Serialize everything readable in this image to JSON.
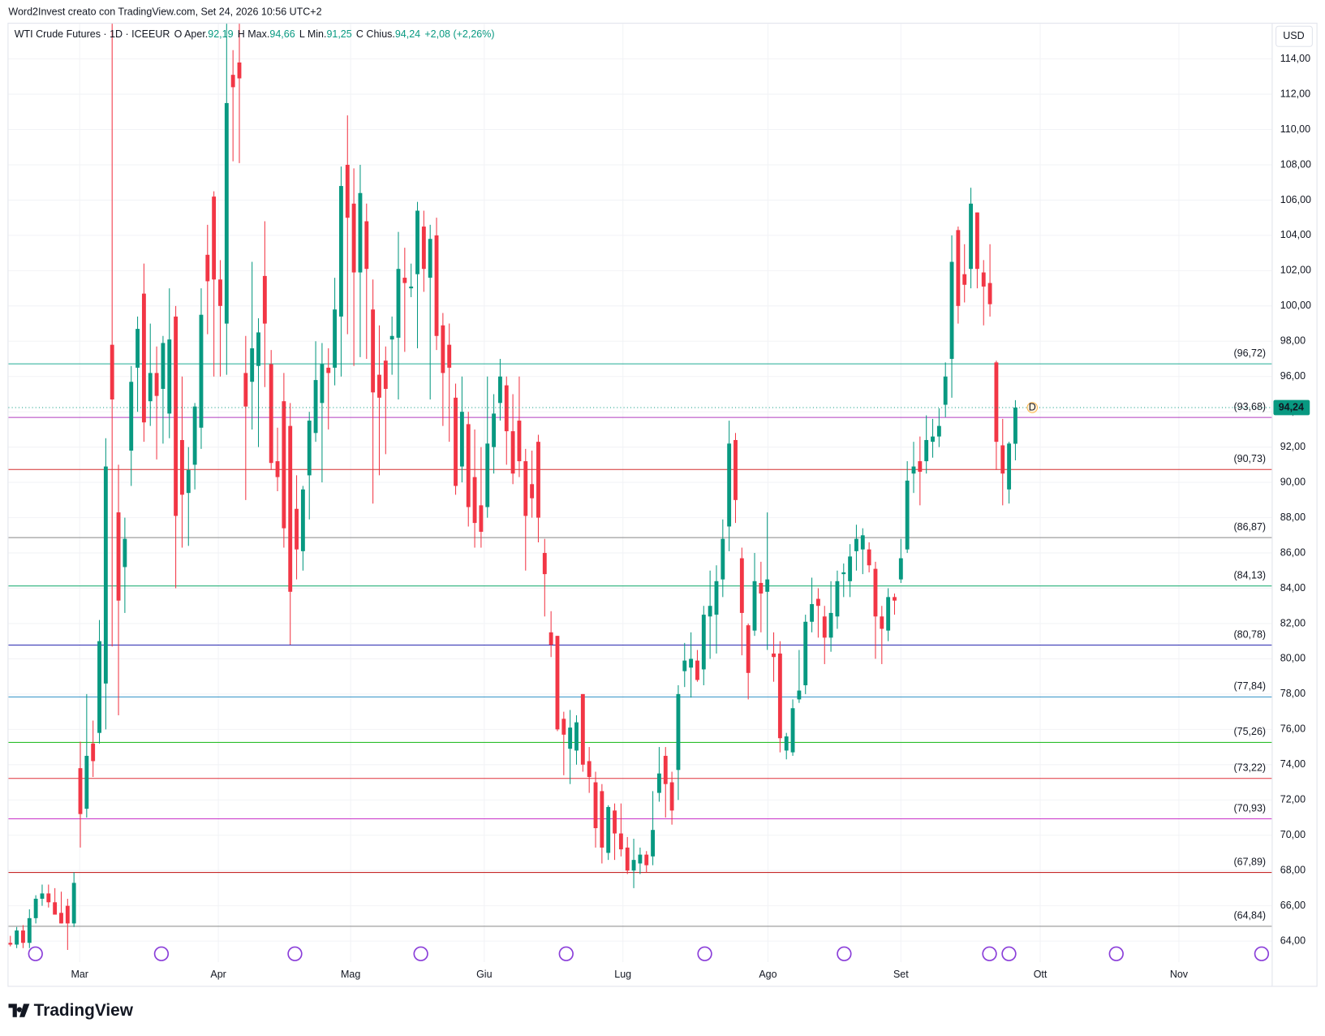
{
  "chart_data": {
    "type": "candlestick",
    "watermark": "Word2Invest creato con TradingView.com, Set 24, 2026 10:56 UTC+2",
    "legend": {
      "symbol": "WTI Crude Futures · 1D · ICEEUR",
      "items": [
        {
          "key": "O",
          "name": "Aper.",
          "value": "92,19"
        },
        {
          "key": "H",
          "name": "Max.",
          "value": "94,66"
        },
        {
          "key": "L",
          "name": "Min.",
          "value": "91,25"
        },
        {
          "key": "C",
          "name": "Chius.",
          "value": "94,24"
        }
      ],
      "change": "+2,08 (+2,26%)"
    },
    "currency": "USD",
    "brand": "TradingView",
    "up_color": "#089981",
    "down_color": "#f23645",
    "xlim": [
      -0.3,
      198.3
    ],
    "xticks": [
      {
        "value": 10.9,
        "label": "Mar"
      },
      {
        "value": 32.7,
        "label": "Apr"
      },
      {
        "value": 53.5,
        "label": "Mag"
      },
      {
        "value": 74.5,
        "label": "Giu"
      },
      {
        "value": 96.3,
        "label": "Lug"
      },
      {
        "value": 119.1,
        "label": "Ago"
      },
      {
        "value": 140,
        "label": "Set"
      },
      {
        "value": 161.9,
        "label": "Ott"
      },
      {
        "value": 183.7,
        "label": "Nov"
      }
    ],
    "ylim": [
      62.8,
      116.0
    ],
    "yticks": [
      {
        "value": 64,
        "label": "64,00"
      },
      {
        "value": 66,
        "label": "66,00"
      },
      {
        "value": 68,
        "label": "68,00"
      },
      {
        "value": 70,
        "label": "70,00"
      },
      {
        "value": 72,
        "label": "72,00"
      },
      {
        "value": 74,
        "label": "74,00"
      },
      {
        "value": 76,
        "label": "76,00"
      },
      {
        "value": 78,
        "label": "78,00"
      },
      {
        "value": 80,
        "label": "80,00"
      },
      {
        "value": 82,
        "label": "82,00"
      },
      {
        "value": 84,
        "label": "84,00"
      },
      {
        "value": 86,
        "label": "86,00"
      },
      {
        "value": 88,
        "label": "88,00"
      },
      {
        "value": 90,
        "label": "90,00"
      },
      {
        "value": 92,
        "label": "92,00"
      },
      {
        "value": 94,
        "label": "94,00"
      },
      {
        "value": 96,
        "label": "96,00"
      },
      {
        "value": 98,
        "label": "98,00"
      },
      {
        "value": 100,
        "label": "100,00"
      },
      {
        "value": 102,
        "label": "102,00"
      },
      {
        "value": 104,
        "label": "104,00"
      },
      {
        "value": 106,
        "label": "106,00"
      },
      {
        "value": 108,
        "label": "108,00"
      },
      {
        "value": 110,
        "label": "110,00"
      },
      {
        "value": 112,
        "label": "112,00"
      },
      {
        "value": 114,
        "label": "114,00"
      }
    ],
    "grid": true,
    "levels": [
      {
        "value": 96.72,
        "label": "(96,72)",
        "color": "#22ab94"
      },
      {
        "value": 93.68,
        "label": "(93,68)",
        "color": "#b03cbf"
      },
      {
        "value": 90.73,
        "label": "(90,73)",
        "color": "#d32f2f"
      },
      {
        "value": 86.87,
        "label": "(86,87)",
        "color": "#888888"
      },
      {
        "value": 84.13,
        "label": "(84,13)",
        "color": "#26b078"
      },
      {
        "value": 80.78,
        "label": "(80,78)",
        "color": "#2a2ab0"
      },
      {
        "value": 77.84,
        "label": "(77,84)",
        "color": "#2d8fc4"
      },
      {
        "value": 75.26,
        "label": "(75,26)",
        "color": "#2cbe2c"
      },
      {
        "value": 73.22,
        "label": "(73,22)",
        "color": "#e0303a"
      },
      {
        "value": 70.93,
        "label": "(70,93)",
        "color": "#c832c8"
      },
      {
        "value": 67.89,
        "label": "(67,89)",
        "color": "#c62828"
      },
      {
        "value": 64.84,
        "label": "(64,84)",
        "color": "#888888"
      }
    ],
    "price_line": {
      "value": 94.24,
      "label": "94,24"
    },
    "marker": "D",
    "candles": [
      [
        63.9,
        64.3,
        63.7,
        63.8
      ],
      [
        63.8,
        64.8,
        63.6,
        64.6
      ],
      [
        64.6,
        64.9,
        63.6,
        63.9
      ],
      [
        63.9,
        65.8,
        63.6,
        65.3
      ],
      [
        65.3,
        66.6,
        65.0,
        66.4
      ],
      [
        66.4,
        67.2,
        66.0,
        66.7
      ],
      [
        66.7,
        67.2,
        65.9,
        66.2
      ],
      [
        66.2,
        67.0,
        65.5,
        65.5
      ],
      [
        65.6,
        66.8,
        65.0,
        65.0
      ],
      [
        66.0,
        66.4,
        63.5,
        65.0
      ],
      [
        65.0,
        67.9,
        64.8,
        67.3
      ],
      [
        73.8,
        75.3,
        69.3,
        71.2
      ],
      [
        71.5,
        78.0,
        71.0,
        74.5
      ],
      [
        75.2,
        76.5,
        73.3,
        74.2
      ],
      [
        75.8,
        82.2,
        75.2,
        81.0
      ],
      [
        78.6,
        92.5,
        76.0,
        90.9
      ],
      [
        97.8,
        116.0,
        80.7,
        94.7
      ],
      [
        88.3,
        91.0,
        76.8,
        83.3
      ],
      [
        85.2,
        88.0,
        82.6,
        86.8
      ],
      [
        91.8,
        96.6,
        89.8,
        95.7
      ],
      [
        96.5,
        99.4,
        94.0,
        98.7
      ],
      [
        100.7,
        102.4,
        92.3,
        93.4
      ],
      [
        94.6,
        99.0,
        93.2,
        96.2
      ],
      [
        96.2,
        97.7,
        91.3,
        94.9
      ],
      [
        95.3,
        98.3,
        92.2,
        97.9
      ],
      [
        93.9,
        101.0,
        92.5,
        98.1
      ],
      [
        99.4,
        100.0,
        84.0,
        88.1
      ],
      [
        92.4,
        96.0,
        86.3,
        89.3
      ],
      [
        89.4,
        92.0,
        86.4,
        90.7
      ],
      [
        91.0,
        94.5,
        89.6,
        94.3
      ],
      [
        93.1,
        101.0,
        91.9,
        99.5
      ],
      [
        102.9,
        104.6,
        98.4,
        101.4
      ],
      [
        106.2,
        106.5,
        96.0,
        101.5
      ],
      [
        101.5,
        102.6,
        96.0,
        100.0
      ],
      [
        99.0,
        116.0,
        96.1,
        111.5
      ],
      [
        113.1,
        114.5,
        108.2,
        112.4
      ],
      [
        113.8,
        116.0,
        108.1,
        112.9
      ],
      [
        96.2,
        98.3,
        89.0,
        94.3
      ],
      [
        95.7,
        102.5,
        93.0,
        97.6
      ],
      [
        96.6,
        99.3,
        92.0,
        98.5
      ],
      [
        101.7,
        104.8,
        95.4,
        99.0
      ],
      [
        96.7,
        97.5,
        90.7,
        91.1
      ],
      [
        91.2,
        93.1,
        89.5,
        90.3
      ],
      [
        94.6,
        96.2,
        86.3,
        87.4
      ],
      [
        93.2,
        94.5,
        80.8,
        83.8
      ],
      [
        88.5,
        90.4,
        84.5,
        86.2
      ],
      [
        86.1,
        89.8,
        85.0,
        89.6
      ],
      [
        90.4,
        94.0,
        87.9,
        93.5
      ],
      [
        92.8,
        98.0,
        92.3,
        95.8
      ],
      [
        94.5,
        97.9,
        90.0,
        96.7
      ],
      [
        96.5,
        97.6,
        93.0,
        96.2
      ],
      [
        96.5,
        101.6,
        95.5,
        99.8
      ],
      [
        99.4,
        107.9,
        96.0,
        106.8
      ],
      [
        108.0,
        110.8,
        98.4,
        105.0
      ],
      [
        105.8,
        107.8,
        96.6,
        101.9
      ],
      [
        101.9,
        108.0,
        97.1,
        106.4
      ],
      [
        104.8,
        105.8,
        97.0,
        102.1
      ],
      [
        99.8,
        101.5,
        88.8,
        95.1
      ],
      [
        96.1,
        98.9,
        90.4,
        94.8
      ],
      [
        96.9,
        97.7,
        91.6,
        95.3
      ],
      [
        98.1,
        99.4,
        96.1,
        98.3
      ],
      [
        98.2,
        104.2,
        94.7,
        102.1
      ],
      [
        101.6,
        103.3,
        97.4,
        101.3
      ],
      [
        101.0,
        102.4,
        100.5,
        101.1
      ],
      [
        101.8,
        105.9,
        97.6,
        105.4
      ],
      [
        104.5,
        105.4,
        100.8,
        102.1
      ],
      [
        101.6,
        104.6,
        94.7,
        103.8
      ],
      [
        104.0,
        105.0,
        97.5,
        98.3
      ],
      [
        98.9,
        99.6,
        93.2,
        96.2
      ],
      [
        97.8,
        99.0,
        92.3,
        96.5
      ],
      [
        94.8,
        95.6,
        89.3,
        89.8
      ],
      [
        90.9,
        96.0,
        90.0,
        94.0
      ],
      [
        93.3,
        94.0,
        87.5,
        88.6
      ],
      [
        90.3,
        93.0,
        86.3,
        87.7
      ],
      [
        88.7,
        92.0,
        86.3,
        87.2
      ],
      [
        88.6,
        96.0,
        88.0,
        92.2
      ],
      [
        92.0,
        95.0,
        90.5,
        93.9
      ],
      [
        94.5,
        97.0,
        93.5,
        96.0
      ],
      [
        95.5,
        96.0,
        91.0,
        92.9
      ],
      [
        92.9,
        95.0,
        89.9,
        90.5
      ],
      [
        93.5,
        96.0,
        90.3,
        91.2
      ],
      [
        91.2,
        91.9,
        85.0,
        88.1
      ],
      [
        89.9,
        91.8,
        88.0,
        89.1
      ],
      [
        92.3,
        92.7,
        86.6,
        88.0
      ],
      [
        86.0,
        86.8,
        82.4,
        84.8
      ],
      [
        81.5,
        82.7,
        80.1,
        80.8
      ],
      [
        81.3,
        81.3,
        75.9,
        76.0
      ],
      [
        76.6,
        77.0,
        73.4,
        75.7
      ],
      [
        74.9,
        77.1,
        72.9,
        76.1
      ],
      [
        74.8,
        76.8,
        74.0,
        76.4
      ],
      [
        78.0,
        78.0,
        73.6,
        74.0
      ],
      [
        74.2,
        75.0,
        72.4,
        73.3
      ],
      [
        73.0,
        73.6,
        69.3,
        70.4
      ],
      [
        72.5,
        72.9,
        68.4,
        69.3
      ],
      [
        69.0,
        71.7,
        68.6,
        71.6
      ],
      [
        71.4,
        71.8,
        68.6,
        70.1
      ],
      [
        70.1,
        71.8,
        68.8,
        69.2
      ],
      [
        69.3,
        69.9,
        67.8,
        68.0
      ],
      [
        68.0,
        69.8,
        67.0,
        68.6
      ],
      [
        68.4,
        69.3,
        67.8,
        68.9
      ],
      [
        68.9,
        69.1,
        67.9,
        68.3
      ],
      [
        68.8,
        72.5,
        68.3,
        70.3
      ],
      [
        72.4,
        75.0,
        71.9,
        73.5
      ],
      [
        74.5,
        75.0,
        71.0,
        72.9
      ],
      [
        73.0,
        73.6,
        70.6,
        71.4
      ],
      [
        73.7,
        78.5,
        72.0,
        78.0
      ],
      [
        79.3,
        80.9,
        78.4,
        79.9
      ],
      [
        79.5,
        81.5,
        77.8,
        80.0
      ],
      [
        79.9,
        80.5,
        78.7,
        78.8
      ],
      [
        79.4,
        83.0,
        78.5,
        82.5
      ],
      [
        82.4,
        85.0,
        80.0,
        83.0
      ],
      [
        82.5,
        85.3,
        80.3,
        84.4
      ],
      [
        84.5,
        87.9,
        83.5,
        86.8
      ],
      [
        87.5,
        93.5,
        86.1,
        92.2
      ],
      [
        92.4,
        92.8,
        87.7,
        89.0
      ],
      [
        85.7,
        86.3,
        80.2,
        82.6
      ],
      [
        81.9,
        82.0,
        77.7,
        79.2
      ],
      [
        81.6,
        86.0,
        81.3,
        84.4
      ],
      [
        84.3,
        85.5,
        81.5,
        83.7
      ],
      [
        83.8,
        88.3,
        80.5,
        84.5
      ],
      [
        80.3,
        81.5,
        78.7,
        80.1
      ],
      [
        80.3,
        81.0,
        74.7,
        75.5
      ],
      [
        74.8,
        75.8,
        74.3,
        75.6
      ],
      [
        74.7,
        77.7,
        74.5,
        77.2
      ],
      [
        77.7,
        80.5,
        77.5,
        78.2
      ],
      [
        78.5,
        82.5,
        78.0,
        82.1
      ],
      [
        82.1,
        84.6,
        81.5,
        83.1
      ],
      [
        83.4,
        84.0,
        81.2,
        83.0
      ],
      [
        82.4,
        83.0,
        79.7,
        81.2
      ],
      [
        81.2,
        84.4,
        80.4,
        82.6
      ],
      [
        82.4,
        85.0,
        81.7,
        84.4
      ],
      [
        84.8,
        85.4,
        83.5,
        84.9
      ],
      [
        84.4,
        86.5,
        83.5,
        85.8
      ],
      [
        86.1,
        87.6,
        85.0,
        86.8
      ],
      [
        86.2,
        87.4,
        84.8,
        87.0
      ],
      [
        86.2,
        86.6,
        84.9,
        85.3
      ],
      [
        85.1,
        85.5,
        80.0,
        82.4
      ],
      [
        82.4,
        83.0,
        79.7,
        81.7
      ],
      [
        81.6,
        84.0,
        81.0,
        83.5
      ],
      [
        83.5,
        83.7,
        82.5,
        83.3
      ],
      [
        84.5,
        86.8,
        84.3,
        85.7
      ],
      [
        86.2,
        91.2,
        86.0,
        90.1
      ],
      [
        90.5,
        92.3,
        89.4,
        90.9
      ],
      [
        91.2,
        92.6,
        88.7,
        90.6
      ],
      [
        91.2,
        93.8,
        90.5,
        92.4
      ],
      [
        92.3,
        93.6,
        91.4,
        92.6
      ],
      [
        92.6,
        94.2,
        92.0,
        93.2
      ],
      [
        94.4,
        96.8,
        93.7,
        96.0
      ],
      [
        97.0,
        104.0,
        94.8,
        102.5
      ],
      [
        104.3,
        104.5,
        99.0,
        100.0
      ],
      [
        101.8,
        103.5,
        100.2,
        101.2
      ],
      [
        102.1,
        106.7,
        101.0,
        105.8
      ],
      [
        105.3,
        105.3,
        101.0,
        102.1
      ],
      [
        101.9,
        102.6,
        98.9,
        101.1
      ],
      [
        101.3,
        103.5,
        99.4,
        100.1
      ],
      [
        96.8,
        96.9,
        90.7,
        92.3
      ],
      [
        92.1,
        93.6,
        88.7,
        90.5
      ],
      [
        89.6,
        92.3,
        88.8,
        92.2
      ],
      [
        92.19,
        94.66,
        91.25,
        94.24
      ]
    ]
  }
}
